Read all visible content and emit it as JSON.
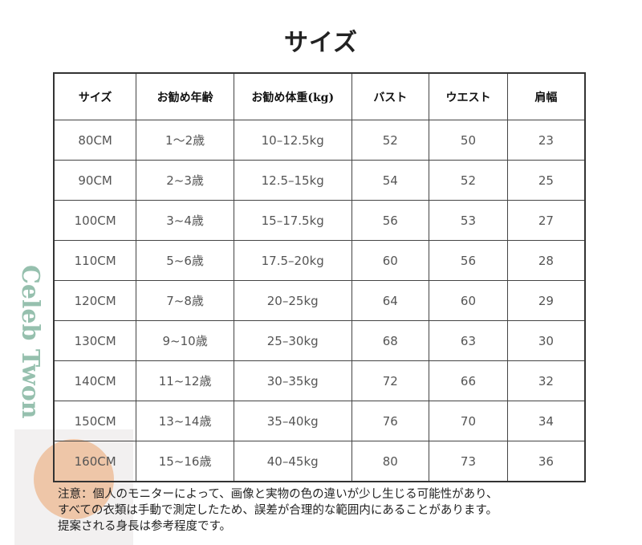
{
  "title": "サイズ",
  "table": {
    "headers": [
      "サイズ",
      "お勧め年齢",
      "お勧め体重(kg)",
      "バスト",
      "ウエスト",
      "肩幅"
    ],
    "rows": [
      [
        "80CM",
        "1～2歳",
        "10–12.5kg",
        "52",
        "50",
        "23"
      ],
      [
        "90CM",
        "2~3歳",
        "12.5–15kg",
        "54",
        "52",
        "25"
      ],
      [
        "100CM",
        "3~4歳",
        "15–17.5kg",
        "56",
        "53",
        "27"
      ],
      [
        "110CM",
        "5~6歳",
        "17.5–20kg",
        "60",
        "56",
        "28"
      ],
      [
        "120CM",
        "7~8歳",
        "20–25kg",
        "64",
        "60",
        "29"
      ],
      [
        "130CM",
        "9~10歳",
        "25–30kg",
        "68",
        "63",
        "30"
      ],
      [
        "140CM",
        "11~12歳",
        "30–35kg",
        "72",
        "66",
        "32"
      ],
      [
        "150CM",
        "13~14歳",
        "35–40kg",
        "76",
        "70",
        "34"
      ],
      [
        "160CM",
        "15~16歳",
        "40–45kg",
        "80",
        "73",
        "36"
      ]
    ]
  },
  "notes": [
    "注意：個人のモニターによって、画像と実物の色の違いが少し生じる可能性があり、",
    "すべての衣類は手動で測定したため、誤差が合理的な範囲内にあることがあります。",
    "提案される身長は参考程度です。"
  ],
  "watermark": {
    "text": "Celeb Twon",
    "accent": "#eba878",
    "text_color": "#5a9a7a"
  }
}
